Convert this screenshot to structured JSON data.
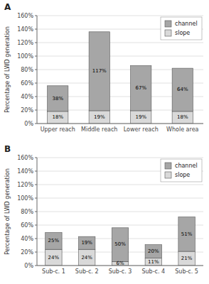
{
  "chart_data": [
    {
      "type": "bar",
      "title": "A",
      "stacked": true,
      "grid": true,
      "legend": "upper right",
      "data_labels": true,
      "categories": [
        "Upper reach",
        "Middle reach",
        "Lower reach",
        "Whole area"
      ],
      "series": [
        {
          "name": "slope",
          "color": "#d9d9d9",
          "values": [
            18,
            19,
            19,
            18
          ],
          "value_labels": [
            "18%",
            "19%",
            "19%",
            "18%"
          ]
        },
        {
          "name": "channel",
          "color": "#a6a6a6",
          "values": [
            38,
            117,
            67,
            64
          ],
          "value_labels": [
            "38%",
            "117%",
            "67%",
            "64%"
          ]
        }
      ],
      "ylabel": "Percentage of LWD generation",
      "ylim": [
        0,
        160
      ],
      "yticks": [
        {
          "value": 0,
          "label": "0%"
        },
        {
          "value": 20,
          "label": "20%"
        },
        {
          "value": 40,
          "label": "40%"
        },
        {
          "value": 60,
          "label": "60%"
        },
        {
          "value": 80,
          "label": "80%"
        },
        {
          "value": 100,
          "label": "100%"
        },
        {
          "value": 120,
          "label": "120%"
        },
        {
          "value": 140,
          "label": "140%"
        },
        {
          "value": 160,
          "label": "160%"
        }
      ]
    },
    {
      "type": "bar",
      "title": "B",
      "stacked": true,
      "grid": true,
      "legend": "upper right",
      "data_labels": true,
      "categories": [
        "Sub-c. 1",
        "Sub-c. 2",
        "Sub-c. 3",
        "Sub-c. 4",
        "Sub-c. 5"
      ],
      "series": [
        {
          "name": "slope",
          "color": "#d9d9d9",
          "values": [
            24,
            24,
            6,
            11,
            21
          ],
          "value_labels": [
            "24%",
            "24%",
            "6%",
            "11%",
            "21%"
          ]
        },
        {
          "name": "channel",
          "color": "#a6a6a6",
          "values": [
            25,
            19,
            50,
            20,
            51
          ],
          "value_labels": [
            "25%",
            "19%",
            "50%",
            "20%",
            "51%"
          ]
        }
      ],
      "ylabel": "Percentage of LWD generation",
      "ylim": [
        0,
        160
      ],
      "yticks": [
        {
          "value": 0,
          "label": "0%"
        },
        {
          "value": 20,
          "label": "20%"
        },
        {
          "value": 40,
          "label": "40%"
        },
        {
          "value": 60,
          "label": "60%"
        },
        {
          "value": 80,
          "label": "80%"
        },
        {
          "value": 100,
          "label": "100%"
        },
        {
          "value": 120,
          "label": "120%"
        },
        {
          "value": 140,
          "label": "140%"
        },
        {
          "value": 160,
          "label": "160%"
        }
      ]
    }
  ]
}
